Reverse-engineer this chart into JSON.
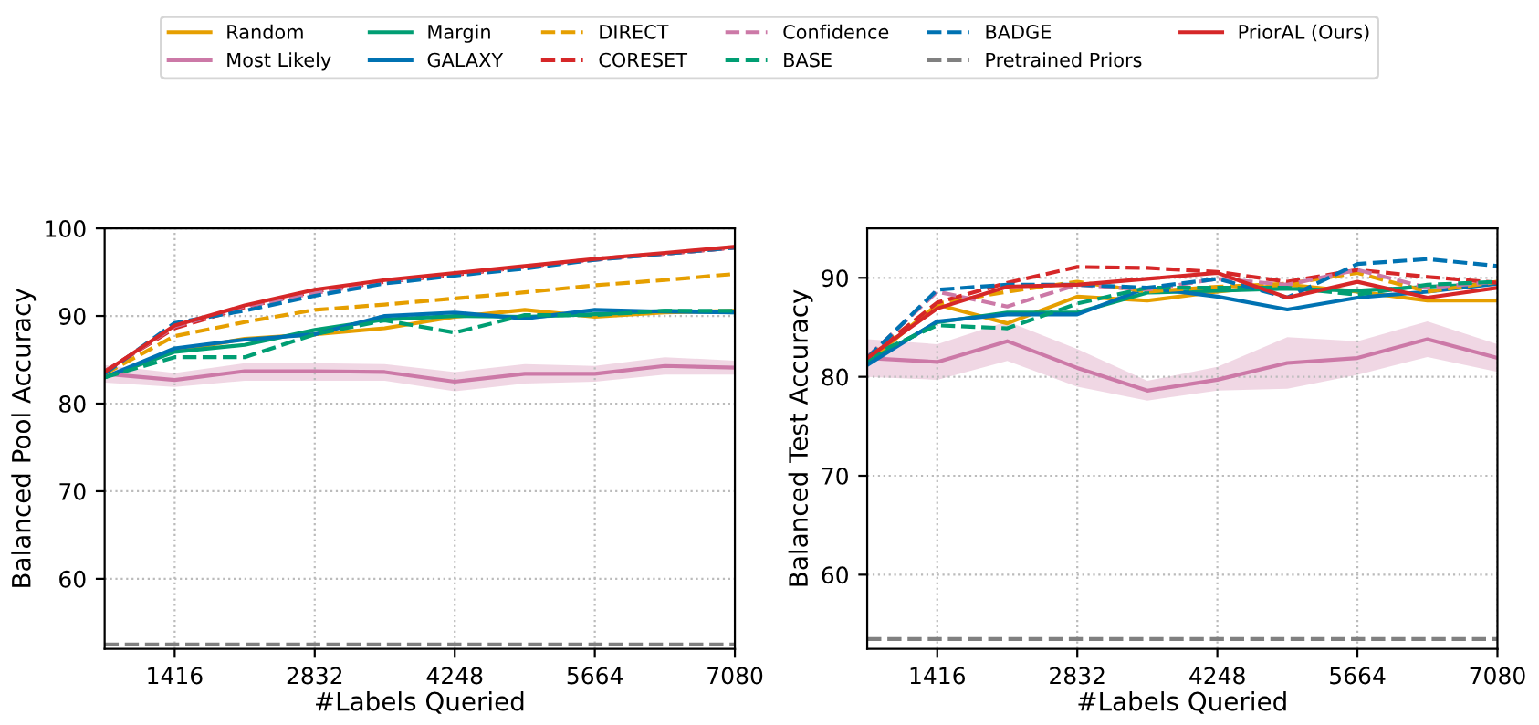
{
  "chart_data": [
    {
      "type": "line",
      "xlabel": "#Labels Queried",
      "ylabel": "Balanced Pool Accuracy",
      "x": [
        708,
        1416,
        2124,
        2832,
        3540,
        4248,
        4956,
        5664,
        6372,
        7080
      ],
      "xlim": [
        708,
        7080
      ],
      "xticks": [
        1416,
        2832,
        4248,
        5664,
        7080
      ],
      "ylim": [
        52,
        100
      ],
      "yticks": [
        60,
        70,
        80,
        90,
        100
      ],
      "grid": true,
      "legend": "top",
      "series": [
        {
          "name": "Random",
          "color": "#e69f00",
          "line_style": "solid",
          "values": [
            83,
            86,
            87.4,
            87.9,
            88.6,
            89.9,
            90.7,
            89.9,
            90.4,
            90.6
          ]
        },
        {
          "name": "Most Likely",
          "color": "#cc79a7",
          "line_style": "solid",
          "values": [
            83.4,
            82.7,
            83.7,
            83.7,
            83.6,
            82.5,
            83.4,
            83.4,
            84.3,
            84.1
          ],
          "lower": [
            82.4,
            81.9,
            82.6,
            82.6,
            82.6,
            81.4,
            82.3,
            82.5,
            83.3,
            83.3
          ],
          "upper": [
            84.4,
            83.5,
            84.6,
            84.6,
            84.5,
            83.6,
            84.5,
            84.3,
            85.3,
            84.9
          ]
        },
        {
          "name": "Margin",
          "color": "#009e73",
          "line_style": "solid",
          "values": [
            83,
            85.9,
            86.7,
            88.4,
            89.6,
            90.0,
            89.9,
            90.2,
            90.6,
            90.4
          ]
        },
        {
          "name": "GALAXY",
          "color": "#0072b2",
          "line_style": "solid",
          "values": [
            83,
            86.3,
            87.3,
            87.9,
            90,
            90.4,
            89.7,
            90.7,
            90.5,
            90.4
          ]
        },
        {
          "name": "DIRECT",
          "color": "#e69f00",
          "line_style": "dashed",
          "values": [
            83.4,
            87.7,
            89.3,
            90.7,
            91.3,
            92,
            92.7,
            93.5,
            94.1,
            94.8
          ]
        },
        {
          "name": "CORESET",
          "color": "#d62728",
          "line_style": "dashed",
          "values": [
            83.7,
            88.6,
            91.0,
            92.8,
            93.9,
            94.7,
            95.6,
            96.5,
            97.1,
            97.8
          ]
        },
        {
          "name": "Confidence",
          "color": "#cc79a7",
          "line_style": "dashed",
          "values": [
            83.6,
            88.8,
            91.1,
            92.6,
            93.9,
            94.8,
            95.6,
            96.4,
            97.1,
            97.8
          ]
        },
        {
          "name": "BASE",
          "color": "#009e73",
          "line_style": "dashed",
          "values": [
            83,
            85.3,
            85.3,
            87.9,
            89.5,
            88.1,
            90.1,
            90.1,
            90.6,
            90.6
          ]
        },
        {
          "name": "BADGE",
          "color": "#0072b2",
          "line_style": "dashed",
          "values": [
            83.4,
            89.2,
            90.6,
            92.3,
            93.7,
            94.6,
            95.4,
            96.4,
            97.1,
            97.8
          ]
        },
        {
          "name": "Pretrained Priors",
          "color": "#808080",
          "line_style": "dashed",
          "values": [
            52.5,
            52.5,
            52.5,
            52.5,
            52.5,
            52.5,
            52.5,
            52.5,
            52.5,
            52.5
          ]
        },
        {
          "name": "PriorAL (Ours)",
          "color": "#d62728",
          "line_style": "solid",
          "values": [
            83.6,
            88.9,
            91.2,
            93.0,
            94.1,
            94.9,
            95.7,
            96.5,
            97.2,
            97.9
          ]
        }
      ]
    },
    {
      "type": "line",
      "xlabel": "#Labels Queried",
      "ylabel": "Balanced Test Accuracy",
      "x": [
        708,
        1416,
        2124,
        2832,
        3540,
        4248,
        4956,
        5664,
        6372,
        7080
      ],
      "xlim": [
        708,
        7080
      ],
      "xticks": [
        1416,
        2832,
        4248,
        5664,
        7080
      ],
      "ylim": [
        52.5,
        95
      ],
      "yticks": [
        60,
        70,
        80,
        90
      ],
      "grid": true,
      "series": [
        {
          "color": "#e69f00",
          "line_style": "solid",
          "values": [
            81.5,
            87.3,
            85.4,
            88.1,
            87.7,
            88.6,
            89.3,
            88.6,
            87.7,
            87.7
          ]
        },
        {
          "color": "#cc79a7",
          "line_style": "solid",
          "values": [
            81.9,
            81.5,
            83.6,
            80.9,
            78.6,
            79.7,
            81.4,
            81.9,
            83.8,
            81.9
          ],
          "lower": [
            80.0,
            79.7,
            81.6,
            79.0,
            77.6,
            78.6,
            78.8,
            80.2,
            82.0,
            80.5
          ],
          "upper": [
            83.8,
            83.3,
            85.6,
            82.8,
            79.6,
            81.0,
            84.0,
            83.6,
            85.6,
            83.3
          ]
        },
        {
          "color": "#009e73",
          "line_style": "solid",
          "values": [
            81.5,
            85.5,
            86.5,
            86.5,
            88.5,
            88.7,
            88.9,
            88.7,
            89.1,
            89.4
          ]
        },
        {
          "color": "#0072b2",
          "line_style": "solid",
          "values": [
            81.2,
            85.6,
            86.3,
            86.3,
            89,
            88.1,
            86.8,
            88,
            88.6,
            89.4
          ]
        },
        {
          "color": "#e69f00",
          "line_style": "dashed",
          "values": [
            82,
            87.4,
            88.6,
            89.6,
            88.6,
            89.1,
            89.4,
            90.5,
            88.6,
            89.6
          ]
        },
        {
          "color": "#d62728",
          "line_style": "dashed",
          "values": [
            81.9,
            87.5,
            89.5,
            91.1,
            91,
            90.6,
            89.6,
            90.8,
            90.1,
            89.5
          ]
        },
        {
          "color": "#cc79a7",
          "line_style": "dashed",
          "values": [
            82,
            88.6,
            87.1,
            89.3,
            88.8,
            89.9,
            89.3,
            90.8,
            89,
            89.6
          ]
        },
        {
          "color": "#009e73",
          "line_style": "dashed",
          "values": [
            82,
            85.2,
            84.9,
            87.4,
            89,
            89,
            89,
            88.3,
            89.3,
            89.6
          ]
        },
        {
          "color": "#0072b2",
          "line_style": "dashed",
          "values": [
            81.9,
            88.8,
            89.3,
            89.3,
            89,
            89.9,
            88,
            91.4,
            91.9,
            91.2
          ]
        },
        {
          "color": "#808080",
          "line_style": "dashed",
          "values": [
            53.5,
            53.5,
            53.5,
            53.5,
            53.5,
            53.5,
            53.5,
            53.5,
            53.5,
            53.5
          ]
        },
        {
          "color": "#d62728",
          "line_style": "solid",
          "values": [
            81.9,
            86.9,
            89.1,
            89.3,
            89.9,
            90.5,
            88,
            89.6,
            88,
            89
          ]
        }
      ]
    }
  ]
}
